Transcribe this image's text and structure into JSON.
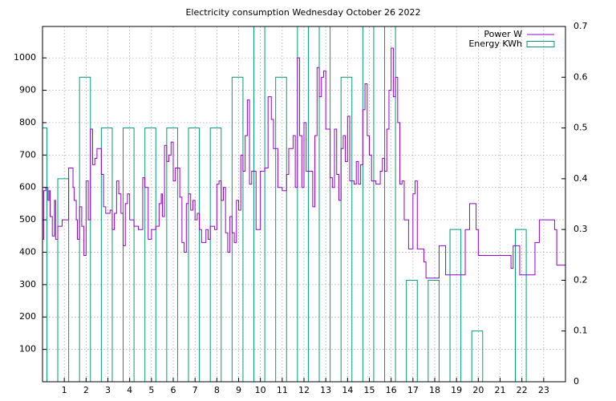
{
  "chart_data": {
    "type": "line",
    "title": "Electricity consumption Wednesday October 26 2022",
    "xlim": [
      0,
      24
    ],
    "xticks": [
      1,
      2,
      3,
      4,
      5,
      6,
      7,
      8,
      9,
      10,
      11,
      12,
      13,
      14,
      15,
      16,
      17,
      18,
      19,
      20,
      21,
      22,
      23
    ],
    "ylim": [
      0,
      1097
    ],
    "yticks": [
      100,
      200,
      300,
      400,
      500,
      600,
      700,
      800,
      900,
      1000
    ],
    "y2lim": [
      0,
      0.7
    ],
    "y2ticks": [
      0,
      0.1,
      0.2,
      0.3,
      0.4,
      0.5,
      0.6,
      0.7
    ],
    "grid": true,
    "legend": "top-right",
    "series": [
      {
        "name": "Power W",
        "color": "#9400d3",
        "style": "steps",
        "x": [
          0.0,
          0.05,
          0.15,
          0.25,
          0.3,
          0.35,
          0.45,
          0.55,
          0.6,
          0.7,
          0.9,
          1.1,
          1.2,
          1.4,
          1.45,
          1.55,
          1.6,
          1.7,
          1.8,
          1.9,
          2.0,
          2.1,
          2.2,
          2.3,
          2.4,
          2.5,
          2.7,
          2.8,
          2.9,
          3.1,
          3.2,
          3.3,
          3.4,
          3.5,
          3.6,
          3.7,
          3.8,
          3.9,
          4.0,
          4.2,
          4.4,
          4.6,
          4.7,
          4.85,
          5.0,
          5.2,
          5.35,
          5.45,
          5.5,
          5.6,
          5.7,
          5.8,
          5.9,
          6.0,
          6.1,
          6.3,
          6.4,
          6.5,
          6.6,
          6.7,
          6.8,
          6.9,
          7.0,
          7.1,
          7.2,
          7.3,
          7.5,
          7.6,
          7.7,
          7.9,
          8.0,
          8.1,
          8.2,
          8.3,
          8.4,
          8.5,
          8.6,
          8.7,
          8.8,
          8.9,
          9.0,
          9.1,
          9.2,
          9.3,
          9.4,
          9.5,
          9.6,
          9.8,
          10.0,
          10.2,
          10.35,
          10.5,
          10.6,
          10.8,
          11.0,
          11.2,
          11.3,
          11.5,
          11.6,
          11.7,
          11.8,
          11.9,
          12.0,
          12.1,
          12.3,
          12.4,
          12.5,
          12.6,
          12.7,
          12.8,
          12.9,
          13.0,
          13.2,
          13.3,
          13.4,
          13.5,
          13.6,
          13.7,
          13.8,
          13.9,
          14.0,
          14.1,
          14.3,
          14.4,
          14.5,
          14.6,
          14.7,
          14.8,
          14.9,
          15.0,
          15.1,
          15.3,
          15.5,
          15.6,
          15.7,
          15.8,
          15.9,
          16.0,
          16.1,
          16.2,
          16.3,
          16.4,
          16.5,
          16.6,
          16.8,
          17.0,
          17.1,
          17.2,
          17.5,
          17.6,
          18.2,
          18.5,
          19.4,
          19.6,
          19.9,
          20.0,
          21.5,
          21.6,
          21.9,
          22.6,
          22.8,
          23.5,
          23.6,
          24.0
        ],
        "values": [
          440,
          590,
          600,
          560,
          590,
          510,
          450,
          560,
          440,
          480,
          500,
          500,
          660,
          600,
          560,
          500,
          440,
          540,
          480,
          390,
          620,
          500,
          780,
          670,
          690,
          720,
          640,
          540,
          520,
          530,
          470,
          520,
          620,
          580,
          520,
          420,
          550,
          580,
          500,
          480,
          470,
          630,
          600,
          440,
          470,
          480,
          550,
          580,
          510,
          730,
          680,
          700,
          740,
          620,
          660,
          570,
          430,
          400,
          550,
          580,
          530,
          560,
          500,
          520,
          470,
          430,
          470,
          440,
          480,
          470,
          610,
          620,
          560,
          600,
          460,
          400,
          510,
          460,
          430,
          560,
          530,
          700,
          650,
          760,
          870,
          610,
          650,
          470,
          650,
          660,
          880,
          810,
          720,
          600,
          590,
          640,
          720,
          760,
          600,
          1000,
          760,
          600,
          800,
          650,
          650,
          540,
          760,
          970,
          880,
          940,
          960,
          780,
          630,
          600,
          780,
          640,
          560,
          720,
          760,
          680,
          820,
          620,
          610,
          680,
          610,
          670,
          840,
          920,
          760,
          700,
          620,
          610,
          650,
          690,
          650,
          780,
          900,
          1030,
          880,
          940,
          800,
          610,
          620,
          500,
          410,
          580,
          620,
          410,
          370,
          320,
          420,
          330,
          470,
          550,
          470,
          390,
          350,
          420,
          330,
          430,
          500,
          470,
          360,
          360
        ]
      },
      {
        "name": "Energy KWh",
        "color": "#009e73",
        "style": "boxes",
        "axis": "y2",
        "x": [
          0,
          1,
          2,
          3,
          4,
          5,
          6,
          7,
          8,
          9,
          10,
          11,
          12,
          13,
          14,
          15,
          16,
          17,
          18,
          19,
          20,
          21,
          22,
          23
        ],
        "values": [
          0.5,
          0.4,
          0.6,
          0.5,
          0.5,
          0.5,
          0.5,
          0.5,
          0.5,
          0.6,
          0.8,
          0.6,
          0.8,
          0.8,
          0.6,
          0.8,
          0.8,
          0.2,
          0.2,
          0.3,
          0.1,
          null,
          0.3,
          null
        ]
      }
    ]
  }
}
